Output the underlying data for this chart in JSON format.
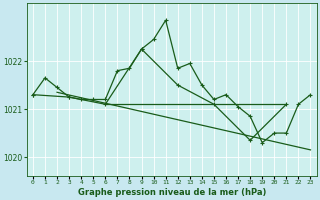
{
  "title": "Graphe pression niveau de la mer (hPa)",
  "background_color": "#c8e8f0",
  "plot_bg_color": "#cef0ee",
  "line_color": "#1a5c1a",
  "grid_color": "#b8dcd8",
  "xlim": [
    -0.5,
    23.5
  ],
  "ylim": [
    1019.6,
    1023.2
  ],
  "yticks": [
    1020,
    1021,
    1022
  ],
  "xtick_labels": [
    "0",
    "1",
    "2",
    "3",
    "4",
    "5",
    "6",
    "7",
    "8",
    "9",
    "10",
    "11",
    "12",
    "13",
    "14",
    "15",
    "16",
    "17",
    "18",
    "19",
    "20",
    "21",
    "22",
    "23"
  ],
  "main_line": {
    "x": [
      0,
      1,
      2,
      3,
      4,
      5,
      6,
      7,
      8,
      9,
      10,
      11,
      12,
      13,
      14,
      15,
      16,
      17,
      18,
      19,
      20,
      21,
      22,
      23
    ],
    "y": [
      1021.3,
      1021.65,
      1021.45,
      1021.25,
      1021.2,
      1021.2,
      1021.2,
      1021.8,
      1021.85,
      1022.25,
      1022.45,
      1022.85,
      1021.85,
      1021.95,
      1021.5,
      1021.2,
      1021.3,
      1021.05,
      1020.85,
      1020.3,
      1020.5,
      1020.5,
      1021.1,
      1021.3
    ]
  },
  "flat_line": {
    "x": [
      6,
      21
    ],
    "y": [
      1021.1,
      1021.1
    ]
  },
  "trend_line": {
    "x": [
      2,
      23
    ],
    "y": [
      1021.35,
      1020.15
    ]
  },
  "synop_line": {
    "x": [
      0,
      3,
      6,
      9,
      12,
      15,
      18,
      21
    ],
    "y": [
      1021.3,
      1021.25,
      1021.1,
      1022.25,
      1021.5,
      1021.1,
      1020.35,
      1021.1
    ]
  }
}
